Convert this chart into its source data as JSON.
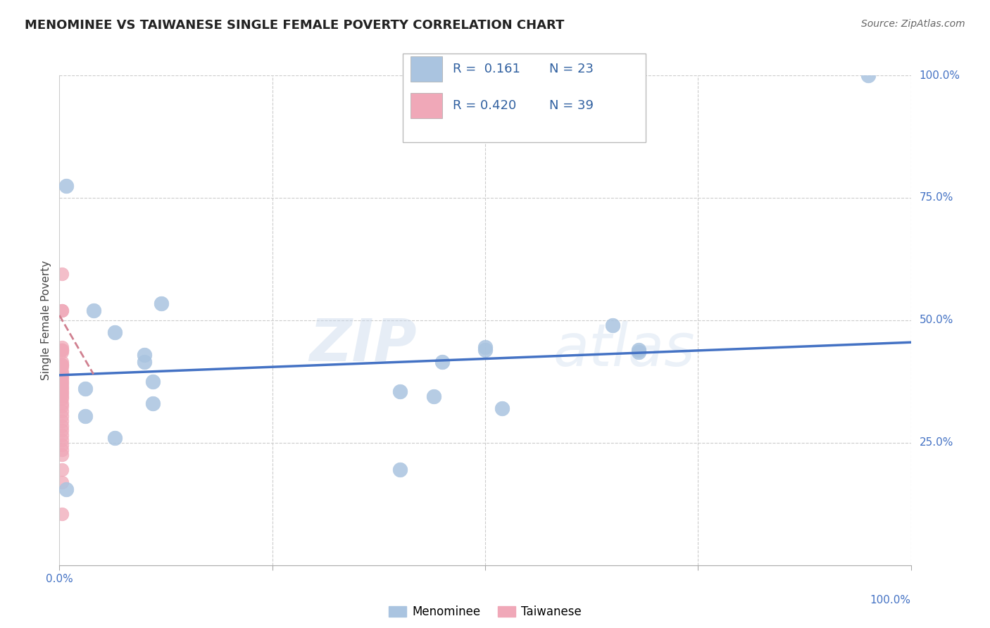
{
  "title": "MENOMINEE VS TAIWANESE SINGLE FEMALE POVERTY CORRELATION CHART",
  "source": "Source: ZipAtlas.com",
  "ylabel": "Single Female Poverty",
  "xlabel": "",
  "xlim": [
    0.0,
    1.0
  ],
  "ylim": [
    0.0,
    1.0
  ],
  "menominee_R": 0.161,
  "menominee_N": 23,
  "taiwanese_R": 0.42,
  "taiwanese_N": 39,
  "menominee_color": "#aac4e0",
  "taiwanese_color": "#f0a8b8",
  "menominee_line_color": "#4472c4",
  "taiwanese_line_color": "#d08090",
  "watermark_zip": "ZIP",
  "watermark_atlas": "atlas",
  "menominee_x": [
    0.008,
    0.04,
    0.12,
    0.1,
    0.45,
    0.44,
    0.65,
    0.68,
    0.5,
    0.4,
    0.11,
    0.1,
    0.03,
    0.03,
    0.065,
    0.008,
    0.4,
    0.52,
    0.5,
    0.11,
    0.065,
    0.68,
    0.95
  ],
  "menominee_y": [
    0.775,
    0.52,
    0.535,
    0.415,
    0.415,
    0.345,
    0.49,
    0.44,
    0.445,
    0.355,
    0.375,
    0.43,
    0.305,
    0.36,
    0.26,
    0.155,
    0.195,
    0.32,
    0.44,
    0.33,
    0.475,
    0.435,
    1.0
  ],
  "taiwanese_x": [
    0.003,
    0.003,
    0.003,
    0.003,
    0.003,
    0.003,
    0.003,
    0.003,
    0.003,
    0.003,
    0.003,
    0.003,
    0.003,
    0.003,
    0.003,
    0.003,
    0.003,
    0.003,
    0.003,
    0.003,
    0.003,
    0.003,
    0.003,
    0.003,
    0.003,
    0.003,
    0.003,
    0.003,
    0.003,
    0.003,
    0.003,
    0.003,
    0.003,
    0.003,
    0.003,
    0.003,
    0.003,
    0.003,
    0.003
  ],
  "taiwanese_y": [
    0.595,
    0.52,
    0.52,
    0.445,
    0.44,
    0.44,
    0.44,
    0.435,
    0.415,
    0.41,
    0.41,
    0.405,
    0.395,
    0.39,
    0.385,
    0.38,
    0.375,
    0.37,
    0.365,
    0.36,
    0.355,
    0.35,
    0.345,
    0.34,
    0.33,
    0.325,
    0.315,
    0.305,
    0.295,
    0.285,
    0.275,
    0.265,
    0.255,
    0.245,
    0.235,
    0.225,
    0.195,
    0.17,
    0.105
  ],
  "menominee_trend_x": [
    0.0,
    1.0
  ],
  "menominee_trend_y": [
    0.388,
    0.455
  ],
  "taiwanese_trend_x": [
    0.0,
    0.04
  ],
  "taiwanese_trend_y": [
    0.51,
    0.39
  ],
  "grid_color": "#cccccc",
  "background_color": "#ffffff",
  "legend_R_color": "#3060a0",
  "legend_N_color": "#3060a0"
}
